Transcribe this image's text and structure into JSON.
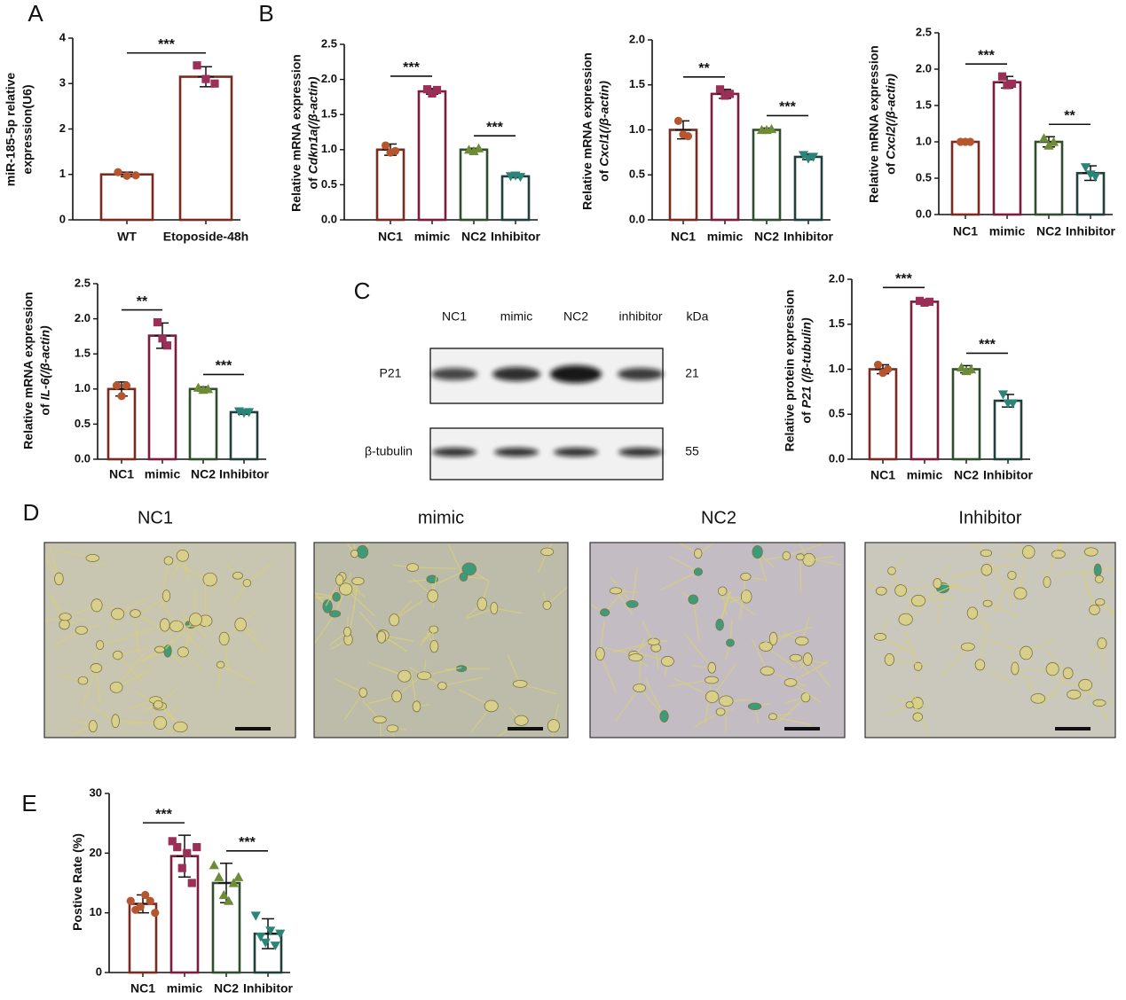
{
  "panel_labels": [
    "A",
    "B",
    "C",
    "D",
    "E"
  ],
  "chart_data": [
    {
      "type": "bar",
      "ylabel": [
        "miR-185-5p relative",
        "expression(U6)"
      ],
      "categories": [
        "WT",
        "Etoposide-48h"
      ],
      "values": [
        1.0,
        3.15
      ],
      "errors": [
        0.05,
        0.22
      ],
      "points": [
        [
          1.05,
          0.97,
          0.98
        ],
        [
          3.4,
          3.1,
          3.0
        ]
      ],
      "colors": [
        "#7b2a22",
        "#7b2a22"
      ],
      "point_colors": [
        "#b5562f",
        "#9b2f57"
      ],
      "markers": [
        "circle",
        "square"
      ],
      "ylim": [
        0,
        4
      ],
      "yticks": [
        0,
        1,
        2,
        3,
        4
      ],
      "annotations": [
        "***"
      ]
    },
    {
      "type": "bar",
      "ylabel": [
        "Relative mRNA expression",
        "of"
      ],
      "ylabel_italic": "Cdkn1a(/β-actin)",
      "categories": [
        "NC1",
        "mimic",
        "NC2",
        "Inhibitor"
      ],
      "values": [
        1.0,
        1.83,
        1.0,
        0.62
      ],
      "errors": [
        0.08,
        0.04,
        0.02,
        0.02
      ],
      "points": [
        [
          1.06,
          0.96,
          0.98
        ],
        [
          1.86,
          1.8,
          1.85
        ],
        [
          1.0,
          0.98,
          1.02
        ],
        [
          0.62,
          0.63,
          0.61
        ]
      ],
      "colors": [
        "#7b2a22",
        "#7d1c3c",
        "#2f4f2c",
        "#1e3f3a"
      ],
      "point_colors": [
        "#b5562f",
        "#9b2f57",
        "#6e8b36",
        "#2b8577"
      ],
      "markers": [
        "circle",
        "square",
        "triangle",
        "triangle-down"
      ],
      "ylim": [
        0,
        2.5
      ],
      "yticks": [
        {
          "value": 0,
          "label": "0.0"
        },
        0.5,
        {
          "value": 1,
          "label": "1.0"
        },
        1.5,
        {
          "value": 2,
          "label": "2.0"
        },
        2.5
      ],
      "annotations": [
        "***",
        "***"
      ]
    },
    {
      "type": "bar",
      "ylabel": [
        "Relative mRNA expression",
        "of"
      ],
      "ylabel_italic": "Cxcl1(/β-actin)",
      "categories": [
        "NC1",
        "mimic",
        "NC2",
        "Inhibitor"
      ],
      "values": [
        1.0,
        1.4,
        1.0,
        0.7
      ],
      "errors": [
        0.1,
        0.05,
        0.02,
        0.03
      ],
      "points": [
        [
          1.1,
          0.95,
          0.93
        ],
        [
          1.45,
          1.38,
          1.4
        ],
        [
          1.0,
          1.0,
          1.01
        ],
        [
          0.72,
          0.68,
          0.7
        ]
      ],
      "colors": [
        "#7b2a22",
        "#7d1c3c",
        "#2f4f2c",
        "#1e3f3a"
      ],
      "point_colors": [
        "#b5562f",
        "#9b2f57",
        "#6e8b36",
        "#2b8577"
      ],
      "markers": [
        "circle",
        "square",
        "triangle",
        "triangle-down"
      ],
      "ylim": [
        0,
        2
      ],
      "yticks": [
        {
          "value": 0,
          "label": "0.0"
        },
        0.5,
        {
          "value": 1,
          "label": "1.0"
        },
        1.5,
        {
          "value": 2,
          "label": "2.0"
        }
      ],
      "annotations": [
        "**",
        "***"
      ]
    },
    {
      "type": "bar",
      "ylabel": [
        "Relative mRNA expression",
        "of"
      ],
      "ylabel_italic": "Cxcl2(/β-actin)",
      "categories": [
        "NC1",
        "mimic",
        "NC2",
        "Inhibitor"
      ],
      "values": [
        1.0,
        1.82,
        1.0,
        0.57
      ],
      "errors": [
        0.01,
        0.08,
        0.07,
        0.1
      ],
      "points": [
        [
          1.0,
          1.0,
          1.0
        ],
        [
          1.9,
          1.78,
          1.8
        ],
        [
          1.05,
          0.95,
          1.0
        ],
        [
          0.65,
          0.55,
          0.52
        ]
      ],
      "colors": [
        "#7b2a22",
        "#7d1c3c",
        "#2f4f2c",
        "#1e3f3a"
      ],
      "point_colors": [
        "#b5562f",
        "#9b2f57",
        "#6e8b36",
        "#2b8577"
      ],
      "markers": [
        "circle",
        "square",
        "triangle",
        "triangle-down"
      ],
      "ylim": [
        0,
        2.5
      ],
      "yticks": [
        {
          "value": 0,
          "label": "0.0"
        },
        0.5,
        {
          "value": 1,
          "label": "1.0"
        },
        1.5,
        {
          "value": 2,
          "label": "2.0"
        },
        2.5
      ],
      "annotations": [
        "***",
        "**"
      ]
    },
    {
      "type": "bar",
      "ylabel": [
        "Relative mRNA expression",
        "of"
      ],
      "ylabel_italic": "IL-6(/β-actin)",
      "categories": [
        "NC1",
        "mimic",
        "NC2",
        "Inhibitor"
      ],
      "values": [
        1.0,
        1.76,
        1.0,
        0.67
      ],
      "errors": [
        0.1,
        0.18,
        0.03,
        0.03
      ],
      "points": [
        [
          1.05,
          0.9,
          1.05
        ],
        [
          1.95,
          1.72,
          1.62
        ],
        [
          1.02,
          0.99,
          1.0
        ],
        [
          0.68,
          0.66,
          0.67
        ]
      ],
      "colors": [
        "#7b2a22",
        "#7d1c3c",
        "#2f4f2c",
        "#1e3f3a"
      ],
      "point_colors": [
        "#b5562f",
        "#9b2f57",
        "#6e8b36",
        "#2b8577"
      ],
      "markers": [
        "circle",
        "square",
        "triangle",
        "triangle-down"
      ],
      "ylim": [
        0,
        2.5
      ],
      "yticks": [
        {
          "value": 0,
          "label": "0.0"
        },
        0.5,
        {
          "value": 1,
          "label": "1.0"
        },
        1.5,
        {
          "value": 2,
          "label": "2.0"
        },
        2.5
      ],
      "annotations": [
        "**",
        "***"
      ]
    },
    {
      "type": "bar",
      "ylabel": [
        "Relative protein expression",
        "of"
      ],
      "ylabel_italic": "P21 (/β-tubulin)",
      "categories": [
        "NC1",
        "mimic",
        "NC2",
        "Inhibitor"
      ],
      "values": [
        1.0,
        1.75,
        1.0,
        0.65
      ],
      "errors": [
        0.05,
        0.02,
        0.04,
        0.07
      ],
      "points": [
        [
          1.05,
          0.96,
          1.0
        ],
        [
          1.76,
          1.74,
          1.75
        ],
        [
          1.02,
          0.98,
          1.0
        ],
        [
          0.72,
          0.62,
          0.62
        ]
      ],
      "colors": [
        "#7b2a22",
        "#7d1c3c",
        "#2f4f2c",
        "#1e3f3a"
      ],
      "point_colors": [
        "#b5562f",
        "#9b2f57",
        "#6e8b36",
        "#2b8577"
      ],
      "markers": [
        "circle",
        "square",
        "triangle",
        "triangle-down"
      ],
      "ylim": [
        0,
        2
      ],
      "yticks": [
        {
          "value": 0,
          "label": "0.0"
        },
        0.5,
        {
          "value": 1,
          "label": "1.0"
        },
        1.5,
        {
          "value": 2,
          "label": "2.0"
        }
      ],
      "annotations": [
        "***",
        "***"
      ]
    },
    {
      "type": "bar",
      "ylabel": [
        "Postive Rate (%)"
      ],
      "categories": [
        "NC1",
        "mimic",
        "NC2",
        "Inhibitor"
      ],
      "values": [
        11.5,
        19.5,
        15.0,
        6.5
      ],
      "errors": [
        1.5,
        3.5,
        3.3,
        2.5
      ],
      "points": [
        [
          12,
          10.5,
          11,
          13,
          12,
          10
        ],
        [
          22,
          21,
          17.5,
          20,
          15,
          21
        ],
        [
          18,
          16,
          13,
          12,
          15,
          16
        ],
        [
          9.5,
          6,
          5,
          7,
          4.5,
          6.5
        ]
      ],
      "colors": [
        "#7b2a22",
        "#7d1c3c",
        "#2f4f2c",
        "#1e3f3a"
      ],
      "point_colors": [
        "#b5562f",
        "#9b2f57",
        "#6e8b36",
        "#2b8577"
      ],
      "markers": [
        "circle",
        "square",
        "triangle",
        "triangle-down"
      ],
      "ylim": [
        0,
        30
      ],
      "yticks": [
        0,
        10,
        20,
        30
      ],
      "annotations": [
        "***",
        "***"
      ]
    }
  ],
  "western_blot": {
    "lanes": [
      "NC1",
      "mimic",
      "NC2",
      "inhibitor"
    ],
    "unit": "kDa",
    "proteins": [
      {
        "name": "P21",
        "kda": 21
      },
      {
        "name": "β-tubulin",
        "kda": 55
      }
    ]
  },
  "microscopy": {
    "groups": [
      "NC1",
      "mimic",
      "NC2",
      "Inhibitor"
    ]
  }
}
